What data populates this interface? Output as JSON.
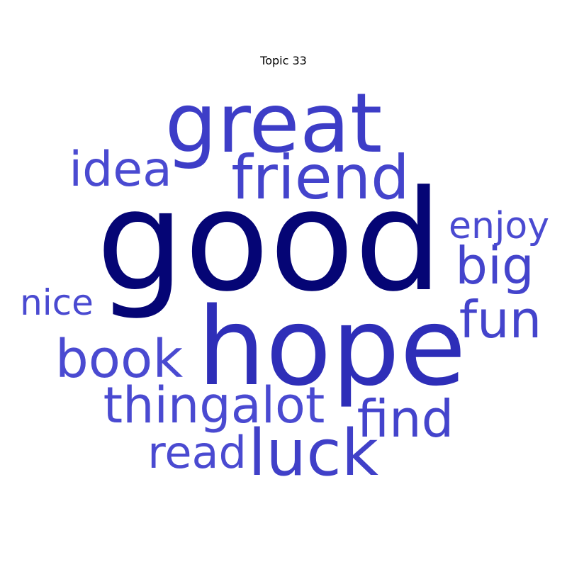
{
  "title": "Topic 33",
  "colors": {
    "dark": "#050575",
    "strong": "#2e2eb8",
    "medium": "#3d3dc7",
    "light": "#4a4ad1"
  },
  "words": [
    {
      "text": "good",
      "weight": 1.0,
      "color": "#050575"
    },
    {
      "text": "hope",
      "weight": 0.78,
      "color": "#2e2eb8"
    },
    {
      "text": "great",
      "weight": 0.6,
      "color": "#3d3dc7"
    },
    {
      "text": "friend",
      "weight": 0.45,
      "color": "#4444cc"
    },
    {
      "text": "luck",
      "weight": 0.45,
      "color": "#4040c8"
    },
    {
      "text": "thingalot",
      "weight": 0.38,
      "color": "#4a4ad1"
    },
    {
      "text": "find",
      "weight": 0.38,
      "color": "#4444cc"
    },
    {
      "text": "book",
      "weight": 0.37,
      "color": "#4a4ad1"
    },
    {
      "text": "big",
      "weight": 0.36,
      "color": "#4444cc"
    },
    {
      "text": "fun",
      "weight": 0.36,
      "color": "#4444cc"
    },
    {
      "text": "idea",
      "weight": 0.35,
      "color": "#4a4ad1"
    },
    {
      "text": "read",
      "weight": 0.33,
      "color": "#4a4ad1"
    },
    {
      "text": "enjoy",
      "weight": 0.27,
      "color": "#4a4ad1"
    },
    {
      "text": "nice",
      "weight": 0.25,
      "color": "#4a4ad1"
    }
  ]
}
